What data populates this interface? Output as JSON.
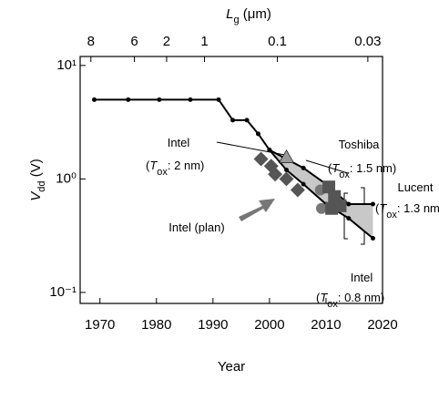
{
  "chart_data": {
    "type": "line",
    "xlabel": [
      "Year"
    ],
    "ylabel": [
      "V",
      "dd",
      " (V)"
    ],
    "x2label": [
      "L",
      "g",
      " (μm)"
    ],
    "xlim": [
      1966.5,
      2020
    ],
    "xticks": [
      1970,
      1980,
      1990,
      2000,
      2010,
      2020
    ],
    "ylim": [
      0.08,
      12
    ],
    "log_y": true,
    "yticks": [
      {
        "value": 10,
        "label": "10¹"
      },
      {
        "value": 1,
        "label": "10⁰"
      },
      {
        "value": 0.1,
        "label": "10⁻¹"
      }
    ],
    "x2ticks": [
      {
        "value": 8,
        "at": 1968.4
      },
      {
        "value": 6,
        "at": 1976.1
      },
      {
        "value": 2,
        "at": 1981.8
      },
      {
        "value": 1,
        "at": 1988.5
      },
      {
        "value": 0.1,
        "at": 2001.4
      },
      {
        "value": 0.03,
        "at": 2017.4
      }
    ],
    "band_color": "#c8c8c8",
    "series": [
      {
        "color": "#000000",
        "marker": "dot",
        "x": [
          1969,
          1975,
          1980.5,
          1986,
          1991,
          1993.5,
          1996,
          1998,
          2000,
          2003,
          2006,
          2010,
          2014,
          2018.3
        ],
        "values": [
          5,
          5,
          5,
          5,
          5,
          3.3,
          3.3,
          2.5,
          1.8,
          1.5,
          1.25,
          0.9,
          0.6,
          0.6
        ]
      },
      {
        "color": "#000000",
        "marker": "dot",
        "x": [
          2000,
          2003,
          2006,
          2010,
          2014,
          2018.3
        ],
        "values": [
          1.8,
          1.2,
          0.9,
          0.6,
          0.45,
          0.3
        ]
      },
      {
        "color": "#555555",
        "marker": "diamond",
        "x": [
          1998.5,
          2000.3,
          2001,
          2003,
          2005
        ],
        "values": [
          1.5,
          1.3,
          1.1,
          1.0,
          0.8
        ]
      },
      {
        "color": "#999999",
        "marker": "triangle",
        "x": [
          2003
        ],
        "values": [
          1.55
        ]
      },
      {
        "color": "#777777",
        "marker": "circle",
        "x": [
          2009,
          2009.2
        ],
        "values": [
          0.8,
          0.55
        ]
      },
      {
        "color": "#555555",
        "marker": "square",
        "x": [
          2010.5,
          2011.5,
          2011,
          2012.5
        ],
        "values": [
          0.85,
          0.7,
          0.55,
          0.58
        ]
      }
    ],
    "annotations": [
      {
        "parts": [
          "Intel"
        ]
      },
      {
        "parts": [
          "(",
          "T",
          "ox",
          ": 2 nm)"
        ]
      },
      {
        "parts": [
          "Toshiba"
        ]
      },
      {
        "parts": [
          "(",
          "T",
          "ox",
          ": 1.5 nm)"
        ]
      },
      {
        "parts": [
          "Lucent"
        ]
      },
      {
        "parts": [
          "(",
          "T",
          "ox",
          ": 1.3 nm)"
        ]
      },
      {
        "parts": [
          "Intel (plan)"
        ]
      },
      {
        "parts": [
          "Intel"
        ]
      },
      {
        "parts": [
          "(",
          "T",
          "ox",
          ": 0.8 nm)"
        ]
      }
    ]
  }
}
